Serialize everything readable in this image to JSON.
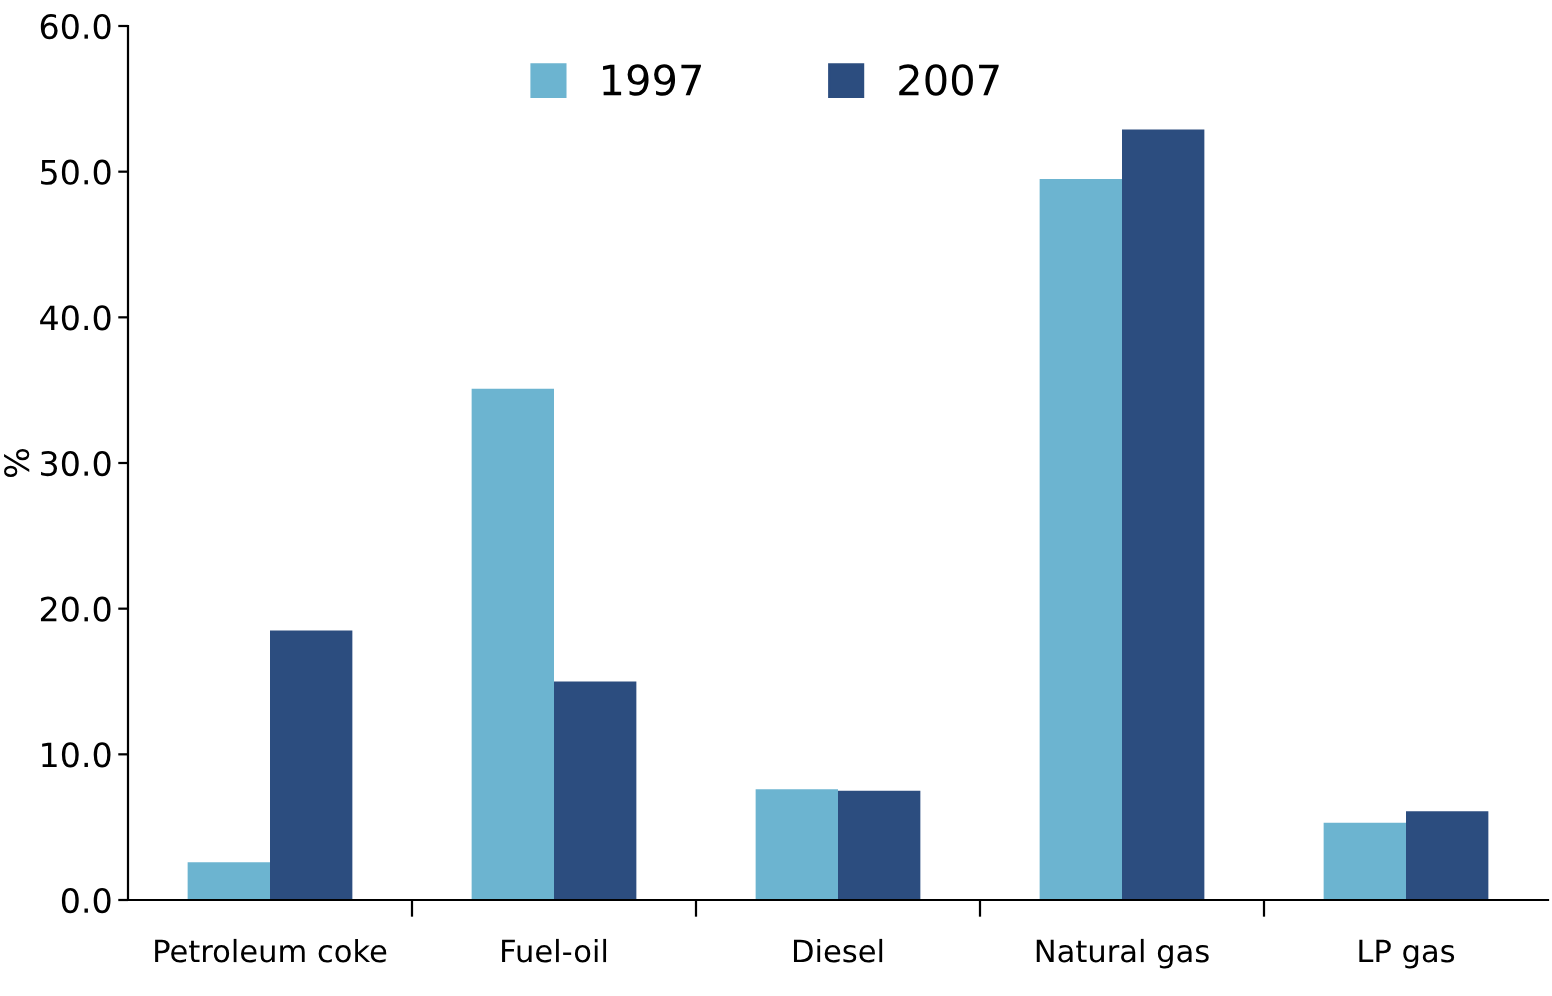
{
  "chart_data": {
    "type": "bar",
    "ylabel": "%",
    "categories": [
      "Petroleum coke",
      "Fuel-oil",
      "Diesel",
      "Natural gas",
      "LP gas"
    ],
    "series": [
      {
        "name": "1997",
        "color": "#6cb4d0",
        "values": [
          2.6,
          35.1,
          7.6,
          49.5,
          5.3
        ]
      },
      {
        "name": "2007",
        "color": "#2c4d7f",
        "values": [
          18.5,
          15.0,
          7.5,
          52.9,
          6.1
        ]
      }
    ],
    "ylim": [
      0,
      60
    ],
    "yticks": [
      {
        "value": 0,
        "label": "0.0"
      },
      {
        "value": 10,
        "label": "10.0"
      },
      {
        "value": 20,
        "label": "20.0"
      },
      {
        "value": 30,
        "label": "30.0"
      },
      {
        "value": 40,
        "label": "40.0"
      },
      {
        "value": 50,
        "label": "50.0"
      },
      {
        "value": 60,
        "label": "60.0"
      }
    ],
    "grid": false,
    "legend": "top"
  }
}
